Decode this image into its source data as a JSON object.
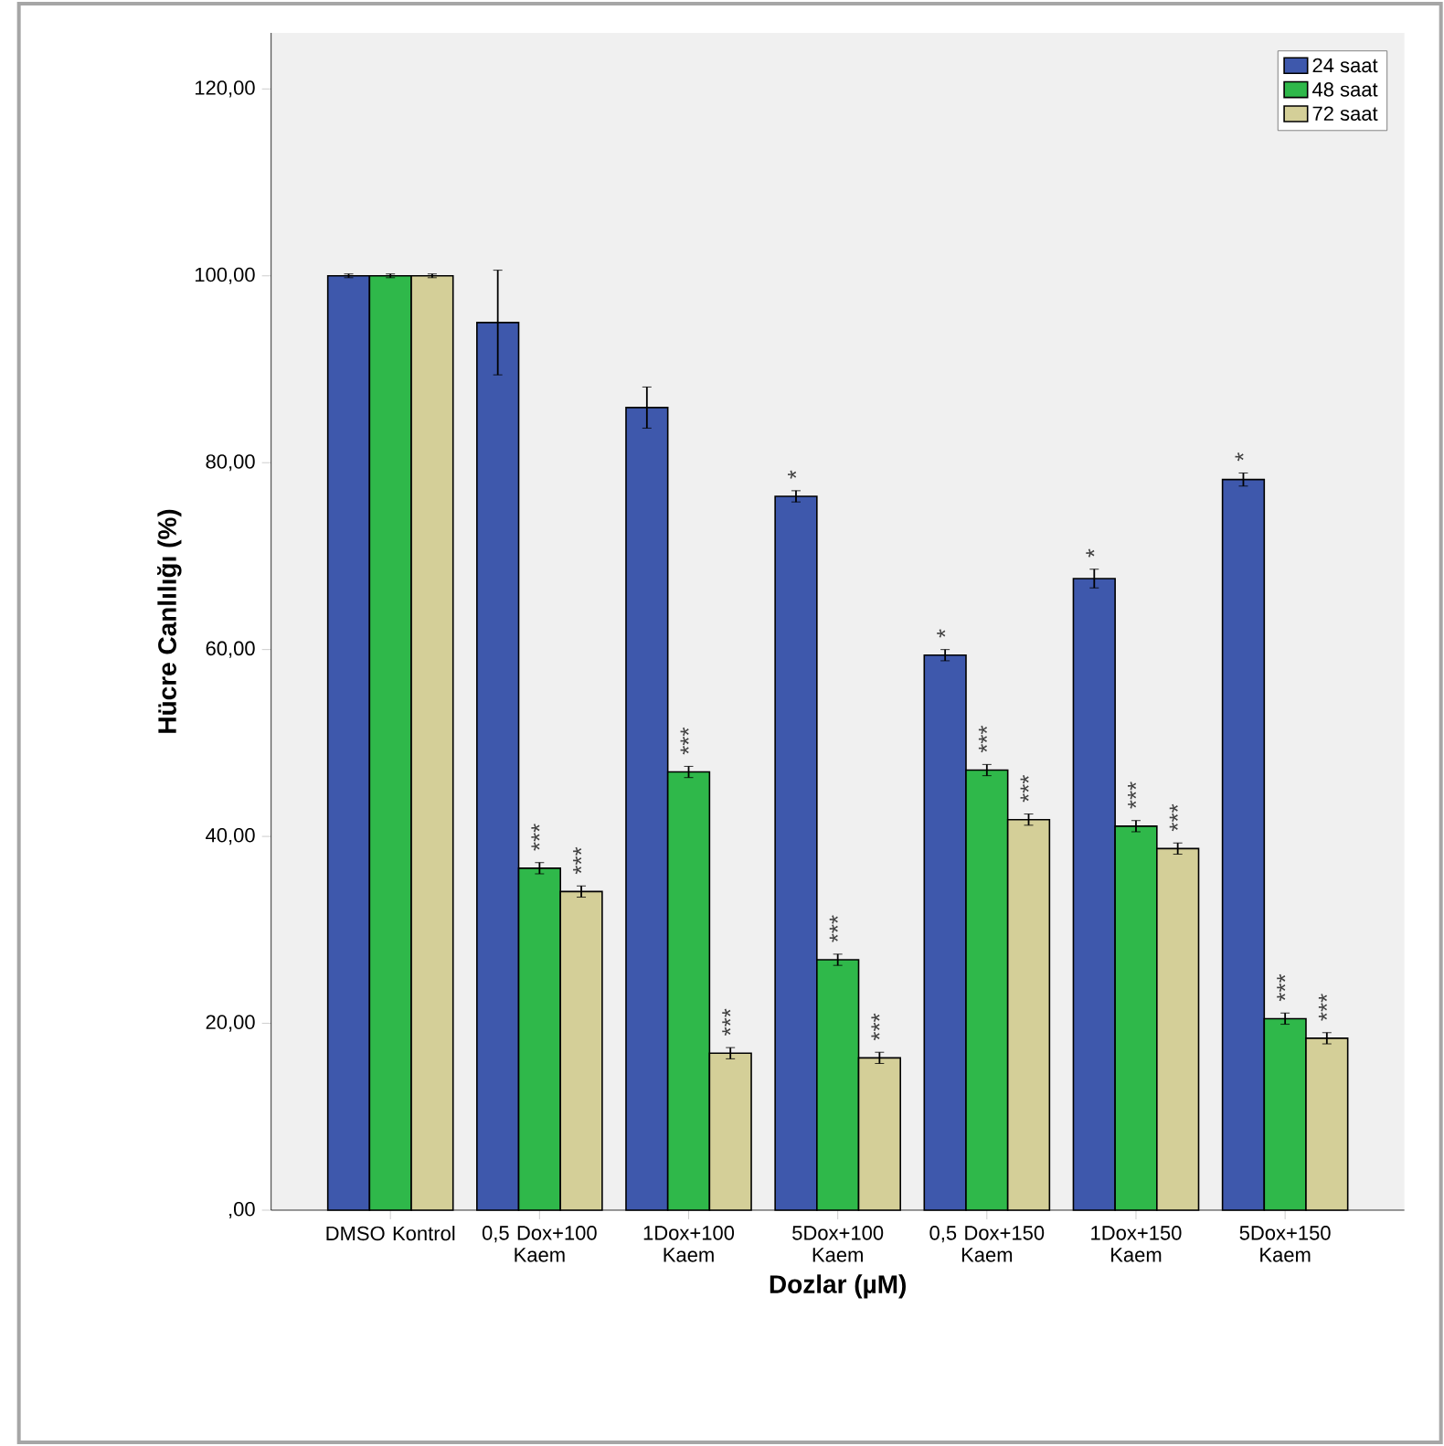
{
  "chart_data": {
    "type": "bar",
    "xlabel": "Dozlar  (µM)",
    "ylabel": "Hücre Canlılığı (%)",
    "categories": [
      "DMSO Kontrol",
      "0,5 Dox+100 Kaem",
      "1Dox+100 Kaem",
      "5Dox+100 Kaem",
      "0,5 Dox+150 Kaem",
      "1Dox+150 Kaem",
      "5Dox+150 Kaem"
    ],
    "series": [
      {
        "name": "24 saat",
        "color": "#3e58ac",
        "values": [
          100,
          95.0,
          85.9,
          76.4,
          59.4,
          67.6,
          78.2
        ],
        "errors": [
          0.2,
          5.6,
          2.2,
          0.6,
          0.6,
          1.0,
          0.7
        ],
        "value_labels": [
          null,
          null,
          null,
          "*",
          "*",
          "*",
          "*"
        ]
      },
      {
        "name": "48 saat",
        "color": "#2fb84a",
        "values": [
          100,
          36.6,
          46.9,
          26.8,
          47.1,
          41.1,
          20.5
        ],
        "errors": [
          0.2,
          0.6,
          0.6,
          0.6,
          0.6,
          0.6,
          0.6
        ],
        "value_labels": [
          null,
          "***",
          "***",
          "***",
          "***",
          "***",
          "***"
        ]
      },
      {
        "name": "72 saat",
        "color": "#d4cf98",
        "values": [
          100,
          34.1,
          16.8,
          16.3,
          41.8,
          38.7,
          18.4
        ],
        "errors": [
          0.2,
          0.6,
          0.6,
          0.6,
          0.6,
          0.6,
          0.6
        ],
        "value_labels": [
          null,
          "***",
          "***",
          "***",
          "***",
          "***",
          "***"
        ]
      }
    ],
    "ylim": [
      0,
      126
    ],
    "yticks": [
      {
        "value": 0,
        "label": ",00"
      },
      {
        "value": 20,
        "label": "20,00"
      },
      {
        "value": 40,
        "label": "40,00"
      },
      {
        "value": 60,
        "label": "60,00"
      },
      {
        "value": 80,
        "label": "80,00"
      },
      {
        "value": 100,
        "label": "100,00"
      },
      {
        "value": 120,
        "label": "120,00"
      }
    ],
    "legend": "top right",
    "grid": false
  }
}
